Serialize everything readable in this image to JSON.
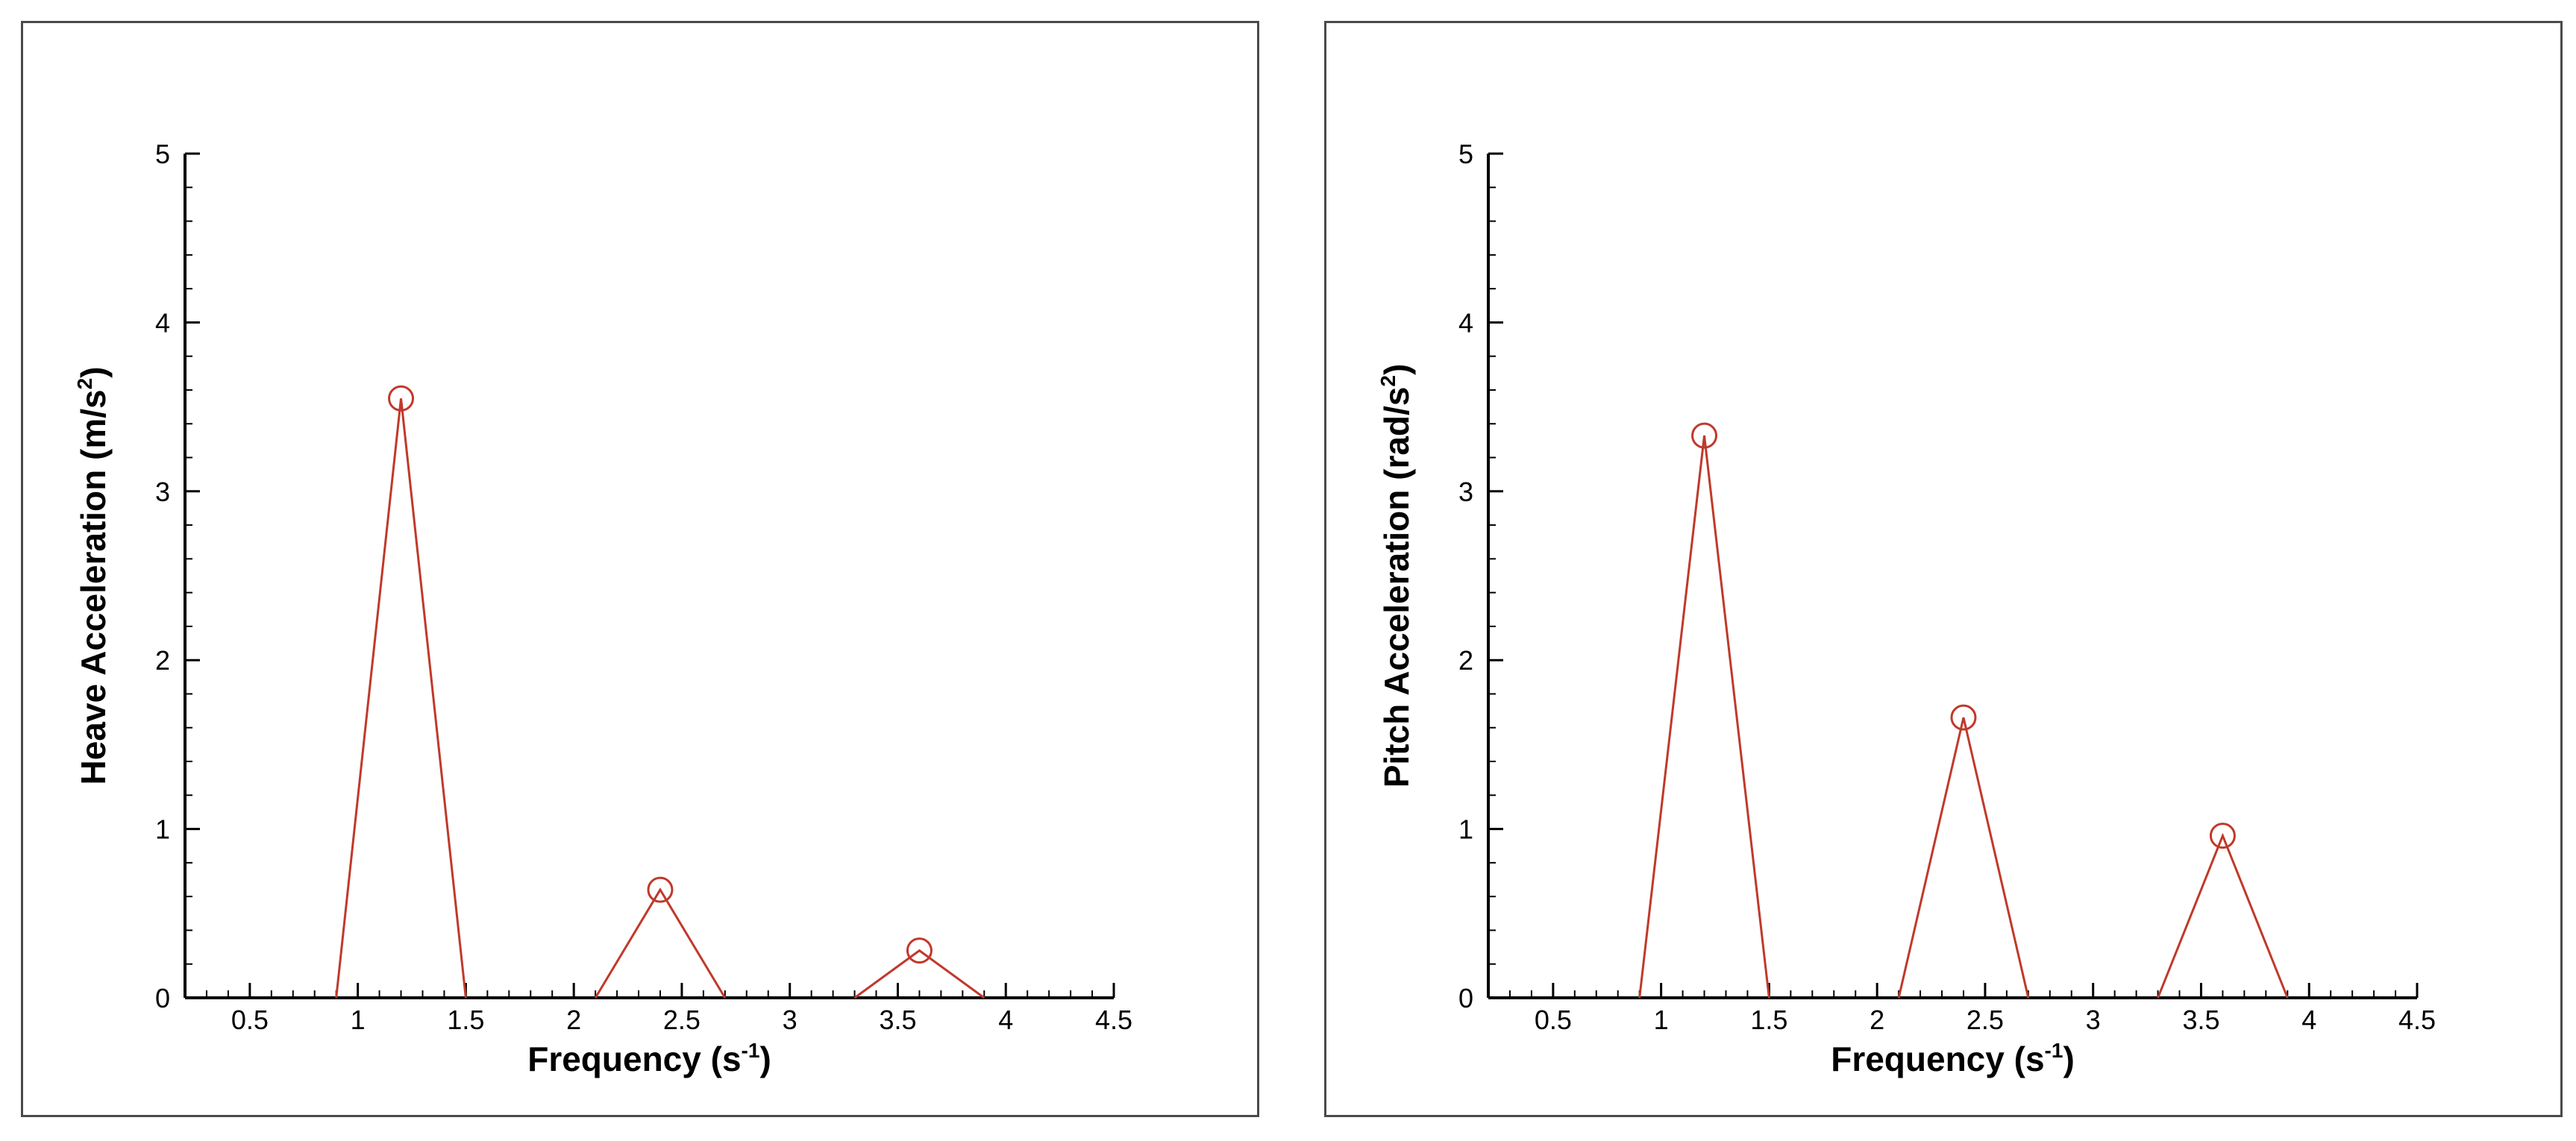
{
  "chart_data": [
    {
      "type": "line",
      "xlabel": "Frequency (s",
      "xlabel_sup": "-1",
      "xlabel_end": ")",
      "ylabel": "Heave Acceleration (m/s",
      "ylabel_sup": "2",
      "ylabel_end": ")",
      "xlim": [
        0.2,
        4.5
      ],
      "ylim": [
        0,
        5
      ],
      "x_ticks": [
        "0.5",
        "1",
        "1.5",
        "2",
        "2.5",
        "3",
        "3.5",
        "4",
        "4.5"
      ],
      "y_ticks": [
        "0",
        "1",
        "2",
        "3",
        "4",
        "5"
      ],
      "grid": false,
      "color": "#c0392b",
      "series": [
        {
          "x": [
            0.9,
            1.2,
            1.5
          ],
          "y": [
            0,
            3.55,
            0
          ]
        },
        {
          "x": [
            2.1,
            2.4,
            2.7
          ],
          "y": [
            0,
            0.64,
            0
          ]
        },
        {
          "x": [
            3.3,
            3.6,
            3.9
          ],
          "y": [
            0,
            0.28,
            0
          ]
        }
      ],
      "markers": {
        "x": [
          1.2,
          2.4,
          3.6
        ],
        "y": [
          3.55,
          0.64,
          0.28
        ],
        "shape": "open-circle"
      }
    },
    {
      "type": "line",
      "xlabel": "Frequency (s",
      "xlabel_sup": "-1",
      "xlabel_end": ")",
      "ylabel": "Pitch Acceleration (rad/s",
      "ylabel_sup": "2",
      "ylabel_end": ")",
      "xlim": [
        0.2,
        4.5
      ],
      "ylim": [
        0,
        5
      ],
      "x_ticks": [
        "0.5",
        "1",
        "1.5",
        "2",
        "2.5",
        "3",
        "3.5",
        "4",
        "4.5"
      ],
      "y_ticks": [
        "0",
        "1",
        "2",
        "3",
        "4",
        "5"
      ],
      "grid": false,
      "color": "#c0392b",
      "series": [
        {
          "x": [
            0.9,
            1.2,
            1.5
          ],
          "y": [
            0,
            3.33,
            0
          ]
        },
        {
          "x": [
            2.1,
            2.4,
            2.7
          ],
          "y": [
            0,
            1.66,
            0
          ]
        },
        {
          "x": [
            3.3,
            3.6,
            3.9
          ],
          "y": [
            0,
            0.96,
            0
          ]
        }
      ],
      "markers": {
        "x": [
          1.2,
          2.4,
          3.6
        ],
        "y": [
          3.33,
          1.66,
          0.96
        ],
        "shape": "open-circle"
      }
    }
  ]
}
